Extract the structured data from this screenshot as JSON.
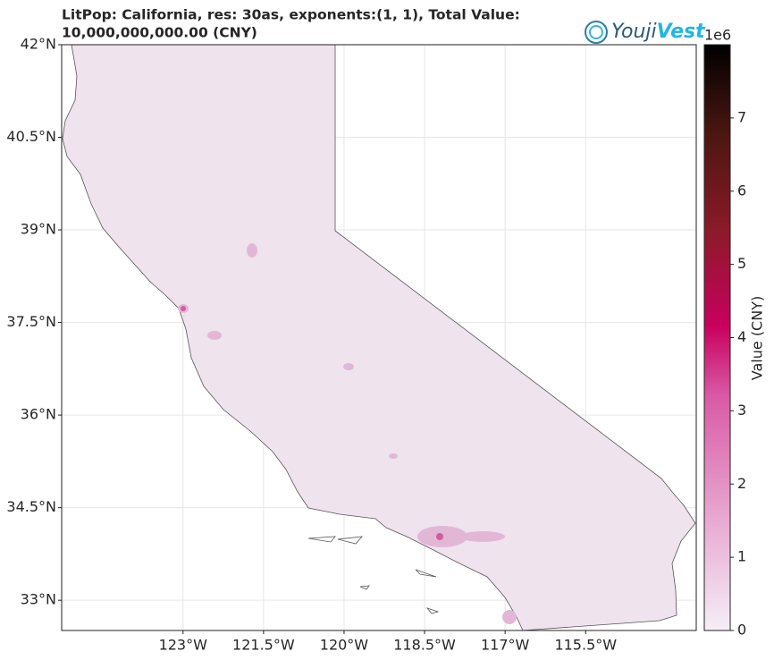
{
  "chart_data": {
    "type": "map",
    "title": [
      "LitPop: California, res: 30as, exponents:(1, 1), Total Value:",
      "10,000,000,000.00 (CNY)"
    ],
    "logo": [
      "Youji",
      "Vest"
    ],
    "xlim": [
      -125.26,
      -113.44
    ],
    "ylim": [
      32.51,
      42
    ],
    "xticks": [
      {
        "value": -123,
        "label": "123°W"
      },
      {
        "value": -121.5,
        "label": "121.5°W"
      },
      {
        "value": -120,
        "label": "120°W"
      },
      {
        "value": -118.5,
        "label": "118.5°W"
      },
      {
        "value": -117,
        "label": "117°W"
      },
      {
        "value": -115.5,
        "label": "115.5°W"
      }
    ],
    "yticks": [
      {
        "value": 33,
        "label": "33°N"
      },
      {
        "value": 34.5,
        "label": "34.5°N"
      },
      {
        "value": 36,
        "label": "36°N"
      },
      {
        "value": 37.5,
        "label": "37.5°N"
      },
      {
        "value": 39,
        "label": "39°N"
      },
      {
        "value": 40.5,
        "label": "40.5°N"
      },
      {
        "value": 42,
        "label": "42°N"
      }
    ],
    "grid": true,
    "colorbar": {
      "label": "Value (CNY)",
      "offset_label": "1e6",
      "clim": [
        0,
        8
      ],
      "ticks": [
        0,
        1,
        2,
        3,
        4,
        5,
        6,
        7
      ]
    }
  }
}
